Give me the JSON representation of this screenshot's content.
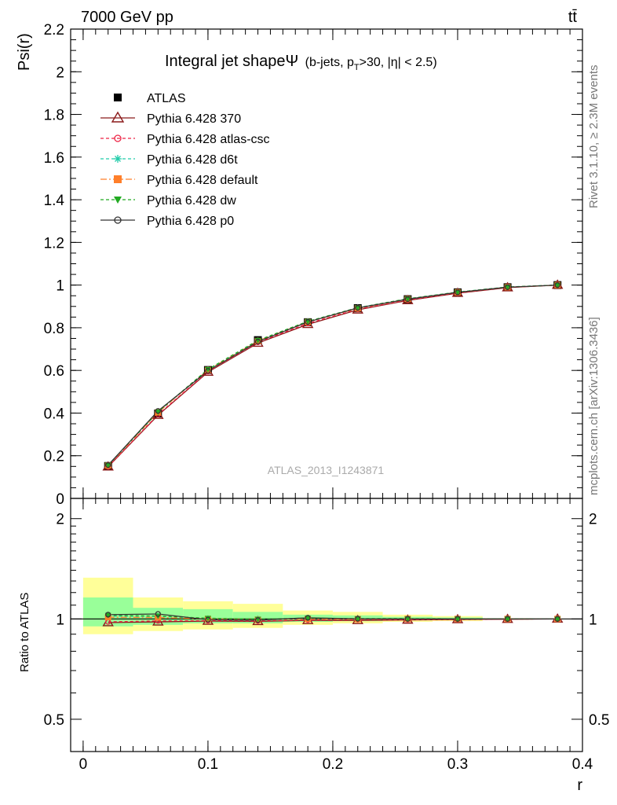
{
  "header": {
    "energy_label": "7000 GeV pp",
    "process_label": "tt̄"
  },
  "side_labels": {
    "rivet": "Rivet 3.1.10, ≥ 2.3M events",
    "mcplots": "mcplots.cern.ch [arXiv:1306.3436]"
  },
  "colors": {
    "yellow_band": "#ffff99",
    "green_band": "#99ff99"
  },
  "chart_data": [
    {
      "type": "line",
      "title": "Integral jet shapeΨ",
      "title_sub": "(b-jets, p",
      "title_sub2": "T",
      "title_sub3": ">30, |η| < 2.5)",
      "watermark": "ATLAS_2013_I1243871",
      "ylabel": "Psi(r)",
      "xlim": [
        -0.01,
        0.4
      ],
      "ylim": [
        0,
        2.2
      ],
      "yticks": [
        0,
        0.2,
        0.4,
        0.6,
        0.8,
        1,
        1.2,
        1.4,
        1.6,
        1.8,
        2,
        2.2
      ],
      "ytick_labels": [
        "0",
        "0.2",
        "0.4",
        "0.6",
        "0.8",
        "1",
        "1.2",
        "1.4",
        "1.6",
        "1.8",
        "2",
        "2.2"
      ],
      "x": [
        0.02,
        0.06,
        0.1,
        0.14,
        0.18,
        0.22,
        0.26,
        0.3,
        0.34,
        0.38
      ],
      "series": [
        {
          "name": "ATLAS",
          "color": "#000000",
          "marker": "square",
          "dash": "",
          "values": [
            0.152,
            0.398,
            0.602,
            0.742,
            0.826,
            0.892,
            0.934,
            0.966,
            0.99,
            1.0
          ]
        },
        {
          "name": "Pythia 6.428 370",
          "color": "#8b1a1a",
          "marker": "triangle",
          "dash": "",
          "values": [
            0.148,
            0.39,
            0.592,
            0.728,
            0.816,
            0.884,
            0.928,
            0.962,
            0.988,
            1.0
          ]
        },
        {
          "name": "Pythia 6.428 atlas-csc",
          "color": "#ee2244",
          "marker": "circle-open",
          "dash": "4,3",
          "values": [
            0.149,
            0.393,
            0.595,
            0.732,
            0.82,
            0.887,
            0.93,
            0.963,
            0.989,
            1.0
          ]
        },
        {
          "name": "Pythia 6.428 d6t",
          "color": "#22ccaa",
          "marker": "star",
          "dash": "4,3",
          "values": [
            0.155,
            0.405,
            0.604,
            0.74,
            0.829,
            0.893,
            0.935,
            0.967,
            0.991,
            1.0
          ]
        },
        {
          "name": "Pythia 6.428 default",
          "color": "#ff7f2a",
          "marker": "square",
          "dash": "8,3,2,3",
          "values": [
            0.154,
            0.403,
            0.602,
            0.738,
            0.827,
            0.891,
            0.934,
            0.966,
            0.99,
            1.0
          ]
        },
        {
          "name": "Pythia 6.428 dw",
          "color": "#22aa22",
          "marker": "triangle-down",
          "dash": "4,3",
          "values": [
            0.156,
            0.406,
            0.605,
            0.741,
            0.83,
            0.894,
            0.936,
            0.967,
            0.991,
            1.0
          ]
        },
        {
          "name": "Pythia 6.428 p0",
          "color": "#333333",
          "marker": "circle-open",
          "dash": "",
          "values": [
            0.156,
            0.41,
            0.598,
            0.735,
            0.827,
            0.893,
            0.934,
            0.966,
            0.99,
            1.0
          ]
        }
      ]
    },
    {
      "type": "line",
      "ylabel": "Ratio to ATLAS",
      "xlabel": "r",
      "scale": "log",
      "ylim": [
        0.4,
        2.3
      ],
      "yticks": [
        0.5,
        1,
        2
      ],
      "ytick_labels": [
        "0.5",
        "1",
        "2"
      ],
      "xticks": [
        0,
        0.1,
        0.2,
        0.3,
        0.4
      ],
      "xtick_labels": [
        "0",
        "0.1",
        "0.2",
        "0.3",
        "0.4"
      ],
      "bands": [
        {
          "x0": 0.0,
          "x1": 0.04,
          "y_lo": 0.9,
          "y_hi": 1.33,
          "g_lo": 0.95,
          "g_hi": 1.16
        },
        {
          "x0": 0.04,
          "x1": 0.08,
          "y_lo": 0.92,
          "y_hi": 1.16,
          "g_lo": 0.96,
          "g_hi": 1.08
        },
        {
          "x0": 0.08,
          "x1": 0.12,
          "y_lo": 0.93,
          "y_hi": 1.13,
          "g_lo": 0.97,
          "g_hi": 1.07
        },
        {
          "x0": 0.12,
          "x1": 0.16,
          "y_lo": 0.94,
          "y_hi": 1.11,
          "g_lo": 0.97,
          "g_hi": 1.05
        },
        {
          "x0": 0.16,
          "x1": 0.2,
          "y_lo": 0.96,
          "y_hi": 1.06,
          "g_lo": 0.98,
          "g_hi": 1.03
        },
        {
          "x0": 0.2,
          "x1": 0.24,
          "y_lo": 0.97,
          "y_hi": 1.05,
          "g_lo": 0.985,
          "g_hi": 1.025
        },
        {
          "x0": 0.24,
          "x1": 0.28,
          "y_lo": 0.98,
          "y_hi": 1.03,
          "g_lo": 0.99,
          "g_hi": 1.015
        },
        {
          "x0": 0.28,
          "x1": 0.32,
          "y_lo": 0.985,
          "y_hi": 1.02,
          "g_lo": 0.993,
          "g_hi": 1.01
        },
        {
          "x0": 0.32,
          "x1": 0.36,
          "y_lo": 0.995,
          "y_hi": 1.005,
          "g_lo": 0.997,
          "g_hi": 1.003
        },
        {
          "x0": 0.36,
          "x1": 0.4,
          "y_lo": 0.998,
          "y_hi": 1.002,
          "g_lo": 0.999,
          "g_hi": 1.001
        }
      ],
      "series": [
        {
          "name": "Pythia 6.428 370",
          "values": [
            0.975,
            0.98,
            0.985,
            0.983,
            0.99,
            0.99,
            0.993,
            0.996,
            0.998,
            1.0
          ]
        },
        {
          "name": "Pythia 6.428 atlas-csc",
          "values": [
            0.98,
            0.987,
            0.988,
            0.986,
            0.993,
            0.994,
            0.995,
            0.997,
            0.999,
            1.0
          ]
        },
        {
          "name": "Pythia 6.428 d6t",
          "values": [
            1.02,
            1.018,
            1.003,
            0.997,
            1.004,
            1.001,
            1.001,
            1.001,
            1.001,
            1.0
          ]
        },
        {
          "name": "Pythia 6.428 default",
          "values": [
            1.012,
            1.01,
            1.0,
            0.995,
            1.001,
            0.999,
            1.0,
            1.0,
            1.0,
            1.0
          ]
        },
        {
          "name": "Pythia 6.428 dw",
          "values": [
            1.026,
            1.02,
            1.005,
            0.999,
            1.005,
            1.002,
            1.002,
            1.001,
            1.001,
            1.0
          ]
        },
        {
          "name": "Pythia 6.428 p0",
          "values": [
            1.03,
            1.035,
            0.995,
            0.992,
            1.008,
            1.001,
            1.0,
            1.0,
            1.0,
            1.0
          ]
        }
      ]
    }
  ]
}
